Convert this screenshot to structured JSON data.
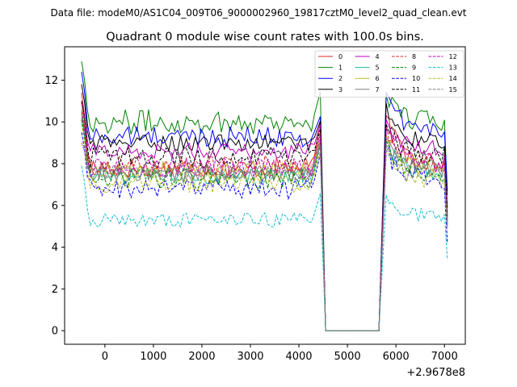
{
  "suptitle": "Data file: modeM0/AS1C04_009T06_9000002960_19817cztM0_level2_quad_clean.evt",
  "chart_data": {
    "type": "line",
    "title": "Quadrant 0 module wise count rates with 100.0s bins.",
    "xlabel": "",
    "ylabel": "",
    "x_offset_label": "+2.9678e8",
    "xlim": [
      -830,
      7430
    ],
    "ylim": [
      -0.65,
      13.6
    ],
    "xticks": [
      0,
      1000,
      2000,
      3000,
      4000,
      5000,
      6000,
      7000
    ],
    "xtick_labels": [
      "0",
      "1000",
      "2000",
      "3000",
      "4000",
      "5000",
      "6000",
      "7000"
    ],
    "yticks": [
      0,
      2,
      4,
      6,
      8,
      10,
      12
    ],
    "ytick_labels": [
      "0",
      "2",
      "4",
      "6",
      "8",
      "10",
      "12"
    ],
    "legend_position": "top-right",
    "legend_columns": 4,
    "segments": [
      {
        "x_start": -480,
        "x_end": 4480,
        "step": 60
      },
      {
        "x_start": 4550,
        "x_end": 5650,
        "step": 1100
      },
      {
        "x_start": 5800,
        "x_end": 7060,
        "step": 60
      }
    ],
    "series": [
      {
        "name": "0",
        "color": "#d62728",
        "dash": "solid",
        "start": 11.4,
        "base": 7.8,
        "peak": 10.6,
        "second_start": 10.3,
        "second_base": 8.1,
        "end": 5.3,
        "noise": 0.5
      },
      {
        "name": "1",
        "color": "#008000",
        "dash": "solid",
        "start": 12.9,
        "base": 10.0,
        "peak": 11.8,
        "second_start": 11.3,
        "second_base": 10.0,
        "end": 6.5,
        "noise": 0.6
      },
      {
        "name": "2",
        "color": "#0000ff",
        "dash": "solid",
        "start": 12.4,
        "base": 9.3,
        "peak": 10.5,
        "second_start": 11.4,
        "second_base": 9.6,
        "end": 6.7,
        "noise": 0.5
      },
      {
        "name": "3",
        "color": "#000000",
        "dash": "solid",
        "start": 11.8,
        "base": 9.0,
        "peak": 10.3,
        "second_start": 10.9,
        "second_base": 9.0,
        "end": 5.9,
        "noise": 0.4
      },
      {
        "name": "4",
        "color": "#bf00bf",
        "dash": "solid",
        "start": 11.0,
        "base": 8.6,
        "peak": 10.2,
        "second_start": 10.1,
        "second_base": 8.7,
        "end": 5.6,
        "noise": 0.4
      },
      {
        "name": "5",
        "color": "#1abc9c",
        "dash": "solid",
        "start": 10.2,
        "base": 7.4,
        "peak": 9.4,
        "second_start": 9.0,
        "second_base": 7.6,
        "end": 5.2,
        "noise": 0.4
      },
      {
        "name": "6",
        "color": "#bcbd22",
        "dash": "solid",
        "start": 10.6,
        "base": 7.7,
        "peak": 9.6,
        "second_start": 9.4,
        "second_base": 7.9,
        "end": 5.4,
        "noise": 0.4
      },
      {
        "name": "7",
        "color": "#7f7f7f",
        "dash": "solid",
        "start": 10.4,
        "base": 7.5,
        "peak": 9.5,
        "second_start": 9.2,
        "second_base": 7.7,
        "end": 5.0,
        "noise": 0.4
      },
      {
        "name": "8",
        "color": "#d62728",
        "dash": "dashed",
        "start": 10.9,
        "base": 7.9,
        "peak": 9.9,
        "second_start": 9.8,
        "second_base": 8.1,
        "end": 5.5,
        "noise": 0.5
      },
      {
        "name": "9",
        "color": "#008000",
        "dash": "dashed",
        "start": 10.1,
        "base": 7.3,
        "peak": 9.3,
        "second_start": 9.1,
        "second_base": 7.5,
        "end": 5.1,
        "noise": 0.5
      },
      {
        "name": "10",
        "color": "#0000ff",
        "dash": "dashed",
        "start": 9.5,
        "base": 6.8,
        "peak": 8.9,
        "second_start": 8.6,
        "second_base": 7.2,
        "end": 4.2,
        "noise": 0.5
      },
      {
        "name": "11",
        "color": "#000000",
        "dash": "dashed",
        "start": 11.0,
        "base": 8.3,
        "peak": 10.0,
        "second_start": 9.9,
        "second_base": 8.4,
        "end": 5.4,
        "noise": 0.5
      },
      {
        "name": "12",
        "color": "#bf00bf",
        "dash": "dashed",
        "start": 10.5,
        "base": 7.8,
        "peak": 9.8,
        "second_start": 9.6,
        "second_base": 8.0,
        "end": 5.2,
        "noise": 0.5
      },
      {
        "name": "13",
        "color": "#17becf",
        "dash": "dashed",
        "start": 7.9,
        "base": 5.3,
        "peak": 6.9,
        "second_start": 6.5,
        "second_base": 5.5,
        "end": 3.4,
        "noise": 0.35
      },
      {
        "name": "14",
        "color": "#bcbd22",
        "dash": "dashed",
        "start": 9.9,
        "base": 7.1,
        "peak": 9.0,
        "second_start": 8.9,
        "second_base": 7.3,
        "end": 4.9,
        "noise": 0.5
      },
      {
        "name": "15",
        "color": "#7f7f7f",
        "dash": "dashed",
        "start": 9.0,
        "base": 7.6,
        "peak": 9.2,
        "second_start": 9.0,
        "second_base": 7.7,
        "end": 5.0,
        "noise": 0.45
      }
    ]
  }
}
